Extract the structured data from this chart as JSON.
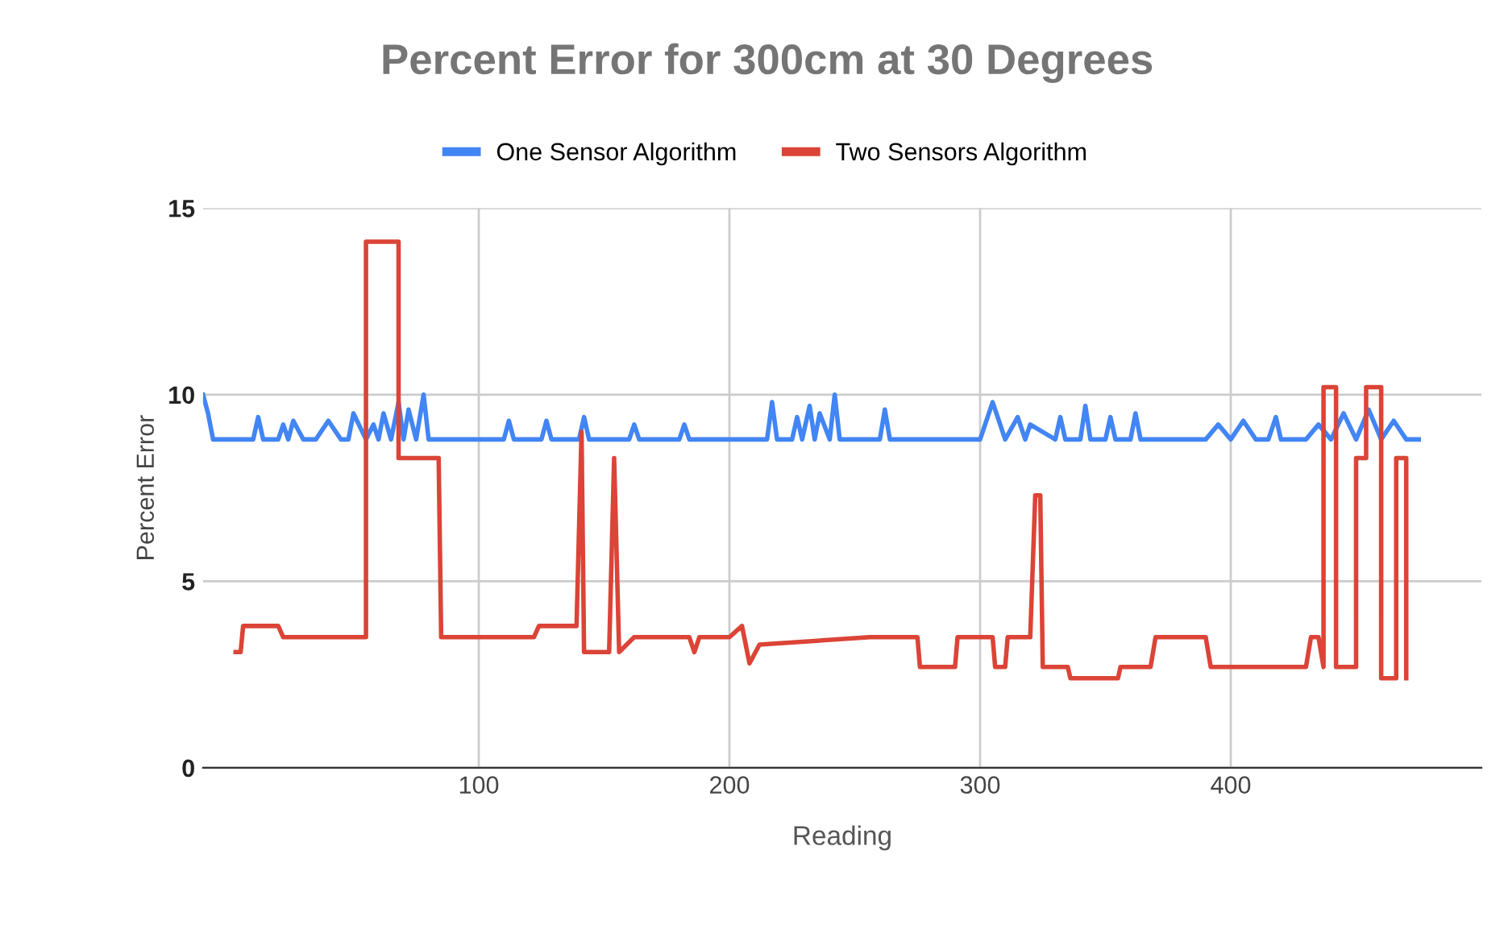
{
  "chart_data": {
    "type": "line",
    "title": "Percent Error for 300cm at 30 Degrees",
    "xlabel": "Reading",
    "ylabel": "Percent Error",
    "xlim": [
      -10,
      500
    ],
    "ylim": [
      0,
      15
    ],
    "xticks": [
      100,
      200,
      300,
      400
    ],
    "yticks": [
      0,
      5,
      10,
      15
    ],
    "grid": true,
    "legend": "top",
    "line_style": "solid",
    "marker": "none",
    "series": [
      {
        "name": "One Sensor Algorithm",
        "color": "#4285f4",
        "x": [
          -10,
          -8,
          -6,
          0,
          10,
          12,
          14,
          20,
          22,
          24,
          26,
          30,
          35,
          40,
          45,
          48,
          50,
          55,
          58,
          60,
          62,
          65,
          68,
          70,
          72,
          75,
          78,
          80,
          85,
          90,
          95,
          110,
          112,
          114,
          125,
          127,
          129,
          140,
          142,
          144,
          160,
          162,
          164,
          180,
          182,
          184,
          195,
          200,
          215,
          217,
          219,
          225,
          227,
          229,
          232,
          234,
          236,
          240,
          242,
          244,
          260,
          262,
          264,
          280,
          290,
          300,
          305,
          310,
          315,
          318,
          320,
          330,
          332,
          334,
          340,
          342,
          344,
          350,
          352,
          354,
          360,
          362,
          364,
          370,
          380,
          390,
          395,
          400,
          405,
          410,
          415,
          418,
          420,
          430,
          435,
          440,
          445,
          450,
          455,
          460,
          465,
          470,
          475
        ],
        "values": [
          10,
          9.5,
          8.8,
          8.8,
          8.8,
          9.4,
          8.8,
          8.8,
          9.2,
          8.8,
          9.3,
          8.8,
          8.8,
          9.3,
          8.8,
          8.8,
          9.5,
          8.8,
          9.2,
          8.8,
          9.5,
          8.8,
          9.8,
          8.8,
          9.6,
          8.8,
          10,
          8.8,
          8.8,
          8.8,
          8.8,
          8.8,
          9.3,
          8.8,
          8.8,
          9.3,
          8.8,
          8.8,
          9.4,
          8.8,
          8.8,
          9.2,
          8.8,
          8.8,
          9.2,
          8.8,
          8.8,
          8.8,
          8.8,
          9.8,
          8.8,
          8.8,
          9.4,
          8.8,
          9.7,
          8.8,
          9.5,
          8.8,
          10,
          8.8,
          8.8,
          9.6,
          8.8,
          8.8,
          8.8,
          8.8,
          9.8,
          8.8,
          9.4,
          8.8,
          9.2,
          8.8,
          9.4,
          8.8,
          8.8,
          9.7,
          8.8,
          8.8,
          9.4,
          8.8,
          8.8,
          9.5,
          8.8,
          8.8,
          8.8,
          8.8,
          9.2,
          8.8,
          9.3,
          8.8,
          8.8,
          9.4,
          8.8,
          8.8,
          9.2,
          8.8,
          9.5,
          8.8,
          9.6,
          8.8,
          9.3,
          8.8,
          8.8
        ]
      },
      {
        "name": "Two Sensors Algorithm",
        "color": "#db4437",
        "x": [
          3,
          5,
          6,
          20,
          22,
          55,
          55,
          68,
          68,
          84,
          85,
          122,
          124,
          139,
          141,
          142,
          143,
          152,
          154,
          156,
          162,
          184,
          186,
          188,
          200,
          205,
          208,
          212,
          256,
          275,
          276,
          290,
          291,
          305,
          306,
          310,
          311,
          320,
          322,
          324,
          325,
          335,
          336,
          355,
          356,
          368,
          370,
          390,
          392,
          430,
          432,
          435,
          437,
          437,
          442,
          442,
          450,
          450,
          454,
          454,
          460,
          460,
          466,
          466,
          470,
          470
        ],
        "values": [
          3.1,
          3.1,
          3.8,
          3.8,
          3.5,
          3.5,
          14.1,
          14.1,
          8.3,
          8.3,
          3.5,
          3.5,
          3.8,
          3.8,
          9,
          3.1,
          3.1,
          3.1,
          8.3,
          3.1,
          3.5,
          3.5,
          3.1,
          3.5,
          3.5,
          3.8,
          2.8,
          3.3,
          3.5,
          3.5,
          2.7,
          2.7,
          3.5,
          3.5,
          2.7,
          2.7,
          3.5,
          3.5,
          7.3,
          7.3,
          2.7,
          2.7,
          2.4,
          2.4,
          2.7,
          2.7,
          3.5,
          3.5,
          2.7,
          2.7,
          3.5,
          3.5,
          2.7,
          10.2,
          10.2,
          2.7,
          2.7,
          8.3,
          8.3,
          10.2,
          10.2,
          2.4,
          2.4,
          8.3,
          8.3,
          2.4
        ]
      }
    ]
  }
}
